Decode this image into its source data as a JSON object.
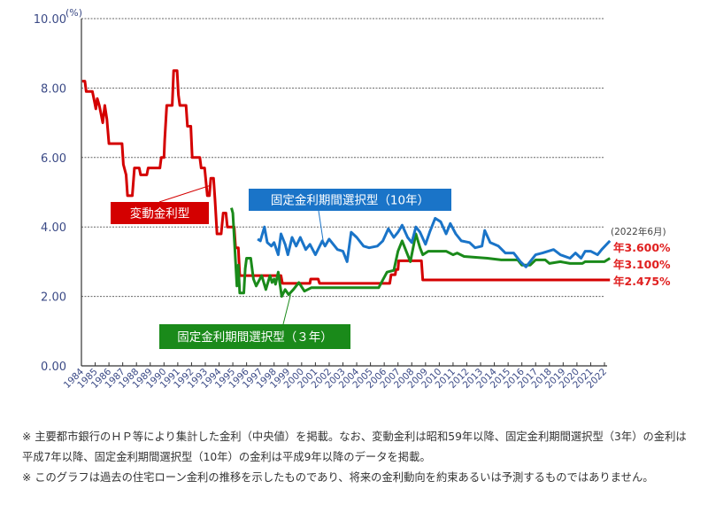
{
  "chart_data": {
    "type": "line",
    "title": "",
    "ylabel": "(%)",
    "xlabel": "",
    "ylim": [
      0,
      10
    ],
    "yticks": [
      "0.00",
      "2.00",
      "4.00",
      "6.00",
      "8.00",
      "10.00"
    ],
    "ytick_values": [
      0,
      2,
      4,
      6,
      8,
      10
    ],
    "xlim": [
      1984,
      2022.4
    ],
    "xticks": [
      "1984",
      "1985",
      "1986",
      "1987",
      "1988",
      "1989",
      "1990",
      "1991",
      "1992",
      "1993",
      "1994",
      "1995",
      "1996",
      "1997",
      "1998",
      "1999",
      "2000",
      "2001",
      "2002",
      "2003",
      "2004",
      "2005",
      "2006",
      "2007",
      "2008",
      "2009",
      "2010",
      "2011",
      "2012",
      "2013",
      "2014",
      "2015",
      "2016",
      "2017",
      "2018",
      "2019",
      "2020",
      "2021",
      "2022"
    ],
    "grid": "horizontal-dotted",
    "series": [
      {
        "name": "変動金利型",
        "color": "#d40000",
        "end_label": "年2.475%",
        "points": [
          [
            1984.05,
            8.2
          ],
          [
            1984.25,
            8.2
          ],
          [
            1984.35,
            7.9
          ],
          [
            1984.8,
            7.9
          ],
          [
            1984.95,
            7.6
          ],
          [
            1985.05,
            7.4
          ],
          [
            1985.15,
            7.7
          ],
          [
            1985.3,
            7.5
          ],
          [
            1985.4,
            7.3
          ],
          [
            1985.55,
            7.0
          ],
          [
            1985.7,
            7.5
          ],
          [
            1985.85,
            7.1
          ],
          [
            1986.0,
            6.4
          ],
          [
            1986.95,
            6.4
          ],
          [
            1987.05,
            5.8
          ],
          [
            1987.25,
            5.5
          ],
          [
            1987.35,
            4.9
          ],
          [
            1987.7,
            4.9
          ],
          [
            1987.85,
            5.7
          ],
          [
            1988.2,
            5.7
          ],
          [
            1988.3,
            5.5
          ],
          [
            1988.75,
            5.5
          ],
          [
            1988.85,
            5.7
          ],
          [
            1989.7,
            5.7
          ],
          [
            1989.8,
            6.0
          ],
          [
            1990.0,
            6.0
          ],
          [
            1990.05,
            6.5
          ],
          [
            1990.2,
            7.5
          ],
          [
            1990.6,
            7.5
          ],
          [
            1990.7,
            8.5
          ],
          [
            1990.95,
            8.5
          ],
          [
            1991.05,
            7.8
          ],
          [
            1991.15,
            7.5
          ],
          [
            1991.6,
            7.5
          ],
          [
            1991.7,
            6.9
          ],
          [
            1991.95,
            6.9
          ],
          [
            1992.05,
            6.0
          ],
          [
            1992.6,
            6.0
          ],
          [
            1992.7,
            5.7
          ],
          [
            1992.95,
            5.7
          ],
          [
            1993.15,
            4.9
          ],
          [
            1993.3,
            4.9
          ],
          [
            1993.4,
            5.4
          ],
          [
            1993.6,
            5.4
          ],
          [
            1993.7,
            4.8
          ],
          [
            1993.85,
            3.8
          ],
          [
            1994.15,
            3.8
          ],
          [
            1994.3,
            4.4
          ],
          [
            1994.5,
            4.4
          ],
          [
            1994.6,
            4.0
          ],
          [
            1995.1,
            4.0
          ],
          [
            1995.2,
            3.4
          ],
          [
            1995.4,
            3.4
          ],
          [
            1995.5,
            2.6
          ],
          [
            1998.5,
            2.6
          ],
          [
            1998.6,
            2.375
          ],
          [
            2000.6,
            2.375
          ],
          [
            2000.65,
            2.5
          ],
          [
            2001.2,
            2.5
          ],
          [
            2001.3,
            2.375
          ],
          [
            2006.4,
            2.375
          ],
          [
            2006.5,
            2.625
          ],
          [
            2006.8,
            2.625
          ],
          [
            2006.85,
            2.775
          ],
          [
            2007.0,
            2.775
          ],
          [
            2007.05,
            3.025
          ],
          [
            2008.7,
            3.025
          ],
          [
            2008.8,
            2.475
          ],
          [
            2022.4,
            2.475
          ]
        ]
      },
      {
        "name": "固定金利期間選択型（3年）",
        "color": "#1a8a1a",
        "end_label": "年3.100%",
        "points": [
          [
            1994.9,
            4.55
          ],
          [
            1995.0,
            4.4
          ],
          [
            1995.3,
            2.3
          ],
          [
            1995.4,
            2.9
          ],
          [
            1995.5,
            2.1
          ],
          [
            1995.8,
            2.1
          ],
          [
            1995.9,
            2.8
          ],
          [
            1996.0,
            3.1
          ],
          [
            1996.3,
            3.1
          ],
          [
            1996.5,
            2.5
          ],
          [
            1996.7,
            2.3
          ],
          [
            1997.1,
            2.6
          ],
          [
            1997.4,
            2.2
          ],
          [
            1997.7,
            2.6
          ],
          [
            1997.85,
            2.4
          ],
          [
            1998.0,
            2.5
          ],
          [
            1998.1,
            2.35
          ],
          [
            1998.3,
            2.7
          ],
          [
            1998.55,
            2.0
          ],
          [
            1998.8,
            2.2
          ],
          [
            1999.05,
            2.05
          ],
          [
            1999.4,
            2.2
          ],
          [
            1999.8,
            2.4
          ],
          [
            2000.2,
            2.15
          ],
          [
            2000.7,
            2.25
          ],
          [
            2005.6,
            2.25
          ],
          [
            2005.8,
            2.4
          ],
          [
            2006.2,
            2.7
          ],
          [
            2006.7,
            2.75
          ],
          [
            2007.0,
            3.3
          ],
          [
            2007.3,
            3.6
          ],
          [
            2007.6,
            3.3
          ],
          [
            2007.9,
            3.0
          ],
          [
            2008.3,
            3.8
          ],
          [
            2008.6,
            3.4
          ],
          [
            2008.8,
            3.2
          ],
          [
            2009.2,
            3.3
          ],
          [
            2010.5,
            3.3
          ],
          [
            2011.0,
            3.2
          ],
          [
            2011.3,
            3.25
          ],
          [
            2011.8,
            3.15
          ],
          [
            2013.5,
            3.1
          ],
          [
            2014.5,
            3.05
          ],
          [
            2015.7,
            3.05
          ],
          [
            2016.0,
            2.9
          ],
          [
            2016.6,
            2.9
          ],
          [
            2017.0,
            3.05
          ],
          [
            2017.7,
            3.05
          ],
          [
            2018.0,
            2.95
          ],
          [
            2018.8,
            3.0
          ],
          [
            2019.5,
            2.95
          ],
          [
            2020.4,
            2.95
          ],
          [
            2020.6,
            3.0
          ],
          [
            2022.0,
            3.0
          ],
          [
            2022.4,
            3.1
          ]
        ]
      },
      {
        "name": "固定金利期間選択型（10年）",
        "color": "#1a74c8",
        "end_label": "年3.600%",
        "points": [
          [
            1996.8,
            3.65
          ],
          [
            1997.0,
            3.6
          ],
          [
            1997.3,
            4.0
          ],
          [
            1997.5,
            3.55
          ],
          [
            1997.8,
            3.45
          ],
          [
            1998.0,
            3.55
          ],
          [
            1998.3,
            3.2
          ],
          [
            1998.5,
            3.8
          ],
          [
            1998.8,
            3.5
          ],
          [
            1999.0,
            3.2
          ],
          [
            1999.3,
            3.7
          ],
          [
            1999.6,
            3.45
          ],
          [
            1999.9,
            3.7
          ],
          [
            2000.3,
            3.35
          ],
          [
            2000.6,
            3.5
          ],
          [
            2001.0,
            3.2
          ],
          [
            2001.5,
            3.6
          ],
          [
            2001.7,
            3.45
          ],
          [
            2002.0,
            3.65
          ],
          [
            2002.6,
            3.35
          ],
          [
            2003.0,
            3.3
          ],
          [
            2003.3,
            3.0
          ],
          [
            2003.6,
            3.85
          ],
          [
            2004.0,
            3.7
          ],
          [
            2004.5,
            3.45
          ],
          [
            2004.9,
            3.4
          ],
          [
            2005.5,
            3.45
          ],
          [
            2005.9,
            3.6
          ],
          [
            2006.3,
            3.95
          ],
          [
            2006.7,
            3.7
          ],
          [
            2007.0,
            3.85
          ],
          [
            2007.3,
            4.05
          ],
          [
            2007.7,
            3.7
          ],
          [
            2008.0,
            3.55
          ],
          [
            2008.3,
            4.0
          ],
          [
            2008.6,
            3.85
          ],
          [
            2009.0,
            3.5
          ],
          [
            2009.3,
            3.85
          ],
          [
            2009.7,
            4.25
          ],
          [
            2010.1,
            4.15
          ],
          [
            2010.5,
            3.8
          ],
          [
            2010.8,
            4.1
          ],
          [
            2011.2,
            3.8
          ],
          [
            2011.6,
            3.6
          ],
          [
            2012.2,
            3.55
          ],
          [
            2012.6,
            3.4
          ],
          [
            2013.1,
            3.45
          ],
          [
            2013.3,
            3.9
          ],
          [
            2013.7,
            3.55
          ],
          [
            2014.3,
            3.45
          ],
          [
            2014.8,
            3.25
          ],
          [
            2015.4,
            3.25
          ],
          [
            2015.9,
            3.0
          ],
          [
            2016.3,
            2.85
          ],
          [
            2016.6,
            3.0
          ],
          [
            2017.0,
            3.2
          ],
          [
            2017.5,
            3.25
          ],
          [
            2018.3,
            3.35
          ],
          [
            2018.8,
            3.2
          ],
          [
            2019.5,
            3.1
          ],
          [
            2019.9,
            3.25
          ],
          [
            2020.3,
            3.1
          ],
          [
            2020.6,
            3.3
          ],
          [
            2021.0,
            3.3
          ],
          [
            2021.5,
            3.2
          ],
          [
            2021.8,
            3.35
          ],
          [
            2022.4,
            3.6
          ]
        ]
      }
    ],
    "end_date_label": "(2022年6月)",
    "annotations": [
      {
        "text": "変動金利型",
        "series": 0,
        "point_to": [
          1993.4,
          5.2
        ]
      },
      {
        "text": "固定金利期間選択型（10年）",
        "series": 2,
        "point_to": [
          2001.6,
          3.5
        ]
      },
      {
        "text": "固定金利期間選択型（３年）",
        "series": 1,
        "point_to": [
          1999.2,
          2.05
        ]
      }
    ]
  },
  "notes": [
    "※ 主要都市銀行のＨＰ等により集計した金利（中央値）を掲載。なお、変動金利は昭和59年以降、固定金利期間選択型（3年）の金利は平成7年以降、固定金利期間選択型（10年）の金利は平成9年以降のデータを掲載。",
    "※ このグラフは過去の住宅ローン金利の推移を示したものであり、将来の金利動向を約束あるいは予測するものではありません。"
  ]
}
